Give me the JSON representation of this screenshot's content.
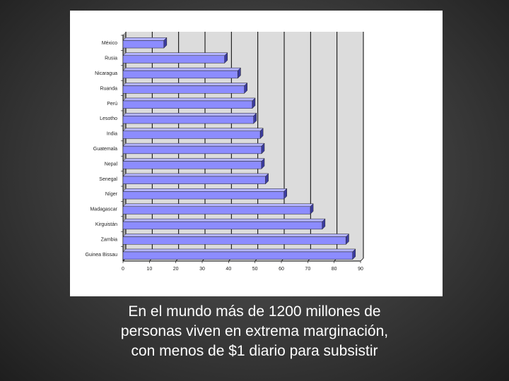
{
  "caption": {
    "line1": "En el mundo más de 1200 millones de",
    "line2": "personas viven en extrema marginación,",
    "line3": "con menos de $1 diario para subsistir"
  },
  "colors": {
    "bar_front": "#8c8cff",
    "bar_top": "#b4b4ff",
    "bar_side": "#3c3ca0",
    "plot_bg": "#dcdcdc",
    "grid": "#000000"
  },
  "chart_data": {
    "type": "bar",
    "orientation": "horizontal",
    "categories": [
      "México",
      "Rusia",
      "Nicaragua",
      "Ruanda",
      "Perú",
      "Lesotho",
      "India",
      "Guatemala",
      "Nepal",
      "Senegal",
      "Níger",
      "Madagascar",
      "Kirguistán",
      "Zambia",
      "Guinea Bissau"
    ],
    "values": [
      15.5,
      38.5,
      43.5,
      46,
      49,
      49.5,
      52,
      52.5,
      52.5,
      54,
      61,
      71,
      75.5,
      84.5,
      87
    ],
    "xlim": [
      0,
      90
    ],
    "xticks": [
      "0",
      "10",
      "20",
      "30",
      "40",
      "50",
      "60",
      "70",
      "80",
      "90"
    ],
    "grid": true,
    "title": "",
    "xlabel": "",
    "ylabel": ""
  }
}
